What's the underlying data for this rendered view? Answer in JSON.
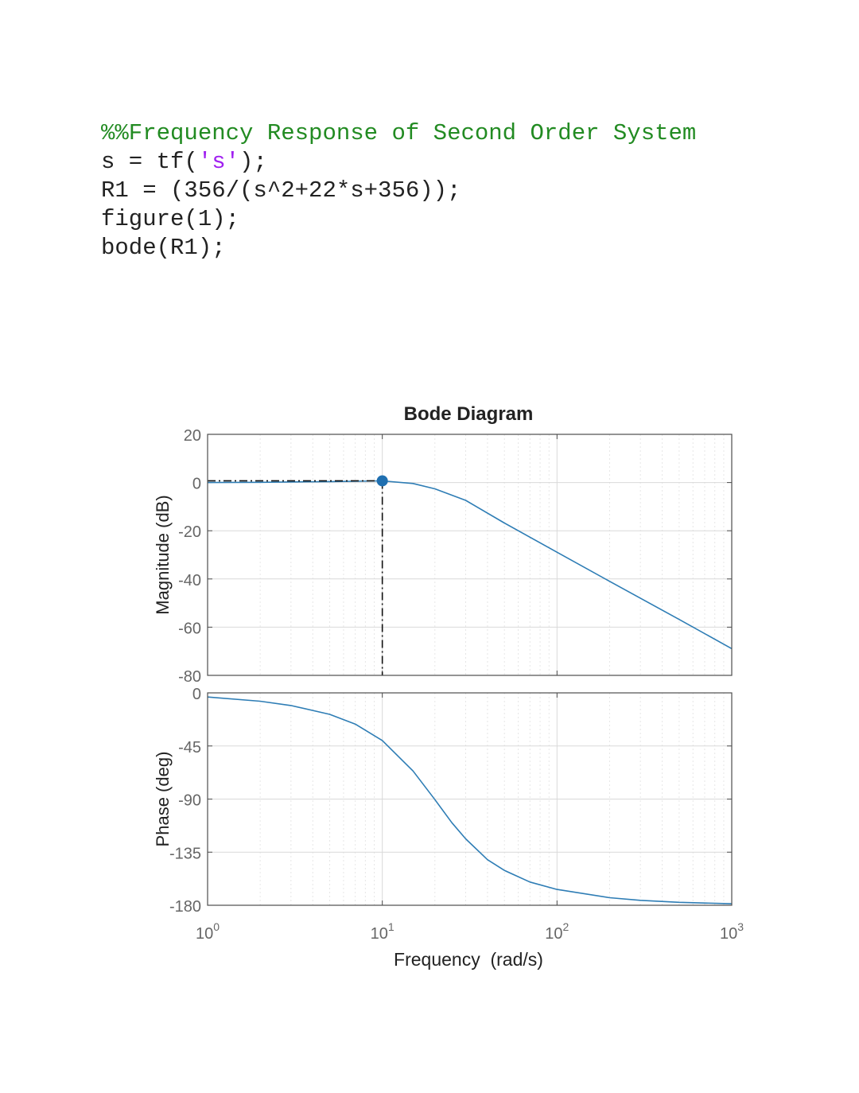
{
  "code": {
    "comment": "%%Frequency Response of Second Order System",
    "line2": {
      "pre": "s = tf(",
      "str": "'s'",
      "post": ");"
    },
    "line3": "R1 = (356/(s^2+22*s+356));",
    "line4": "figure(1);",
    "line5": "bode(R1);"
  },
  "colors": {
    "curve": "#2E7DB5",
    "marker": "#1F6FB0",
    "grid": "#d9d9d9",
    "axis": "#4d4d4d",
    "tick_label": "#666666",
    "comment": "#228B22",
    "string": "#A020F0"
  },
  "chart_data": {
    "type": "line",
    "title": "Bode Diagram",
    "xlabel": "Frequency  (rad/s)",
    "x_scale": "log",
    "xlim": [
      1,
      1000
    ],
    "x_ticks": [
      {
        "base": "10",
        "exp": "0",
        "value": 1
      },
      {
        "base": "10",
        "exp": "1",
        "value": 10
      },
      {
        "base": "10",
        "exp": "2",
        "value": 100
      },
      {
        "base": "10",
        "exp": "3",
        "value": 1000
      }
    ],
    "grid": true,
    "panels": [
      {
        "name": "magnitude",
        "ylabel": "Magnitude (dB)",
        "ylim": [
          -80,
          20
        ],
        "y_ticks": [
          20,
          0,
          -20,
          -40,
          -60,
          -80
        ],
        "y_tick_labels": [
          "20",
          "0",
          "-20",
          "-40",
          "-60",
          "-80"
        ],
        "series": [
          {
            "x": [
              1,
              2,
              5,
              10,
              15,
              20,
              30,
              50,
              100,
              200,
              500,
              1000
            ],
            "y": [
              0.0,
              0.1,
              0.4,
              0.7,
              -0.4,
              -2.6,
              -7.4,
              -16.8,
              -28.9,
              -41.0,
              -56.8,
              -68.9
            ]
          }
        ],
        "marker": {
          "x": 10,
          "y": 0.7
        }
      },
      {
        "name": "phase",
        "ylabel": "Phase (deg)",
        "ylim": [
          -180,
          0
        ],
        "y_ticks": [
          0,
          -45,
          -90,
          -135,
          -180
        ],
        "y_tick_labels": [
          "0",
          "-45",
          "-90",
          "-135",
          "-180"
        ],
        "series": [
          {
            "x": [
              1,
              2,
              3,
              5,
              7,
              10,
              15,
              20,
              25,
              30,
              40,
              50,
              70,
              100,
              200,
              300,
              500,
              1000
            ],
            "y": [
              -3.5,
              -7.1,
              -10.7,
              -18.2,
              -26.4,
              -40.4,
              -66.2,
              -90.5,
              -110.0,
              -123.7,
              -141.4,
              -150.5,
              -160.3,
              -166.6,
              -173.6,
              -175.8,
              -177.5,
              -178.7
            ]
          }
        ]
      }
    ]
  }
}
